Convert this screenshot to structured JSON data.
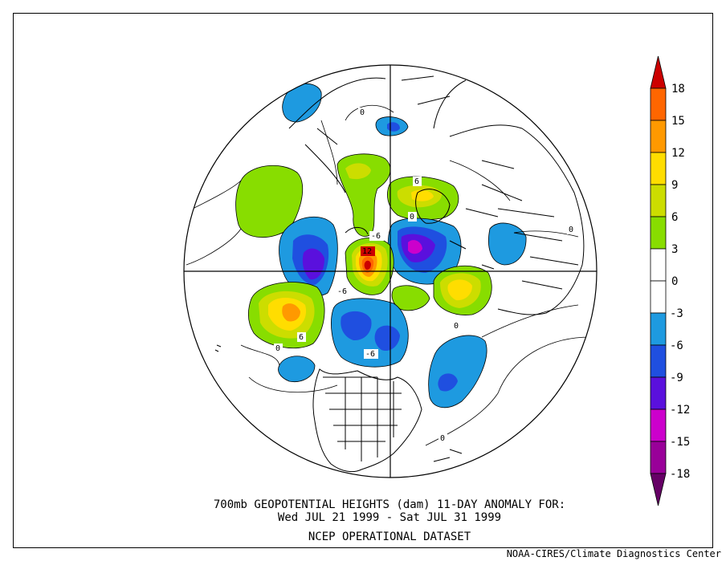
{
  "title": {
    "line1": "700mb GEOPOTENTIAL HEIGHTS (dam)   11-DAY ANOMALY FOR:",
    "line2": "Wed JUL 21 1999 - Sat JUL 31 1999",
    "line3": "NCEP OPERATIONAL DATASET"
  },
  "credit": "NOAA-CIRES/Climate Diagnostics Center",
  "colorbar": {
    "levels": [
      "18",
      "15",
      "12",
      "9",
      "6",
      "3",
      "0",
      "-3",
      "-6",
      "-9",
      "-12",
      "-15",
      "-18"
    ],
    "colors": [
      "#cc0000",
      "#ff6600",
      "#ff9900",
      "#ffdd00",
      "#ccdd00",
      "#88dd00",
      "#ffffff",
      "#ffffff",
      "#1e9ae0",
      "#1f4fe0",
      "#5a10dd",
      "#cc00cc",
      "#990099",
      "#660066"
    ]
  },
  "anomaly_centers": [
    {
      "label": "12",
      "value": 12,
      "color": "#cc0000"
    },
    {
      "label": "-6",
      "value": -6
    },
    {
      "label": "-6",
      "value": -6
    },
    {
      "label": "-6",
      "value": -6
    },
    {
      "label": "6",
      "value": 6
    },
    {
      "label": "6",
      "value": 6
    },
    {
      "label": "0",
      "value": 0
    },
    {
      "label": "0",
      "value": 0
    },
    {
      "label": "0",
      "value": 0
    },
    {
      "label": "0",
      "value": 0
    },
    {
      "label": "0",
      "value": 0
    },
    {
      "label": "0",
      "value": 0
    }
  ]
}
